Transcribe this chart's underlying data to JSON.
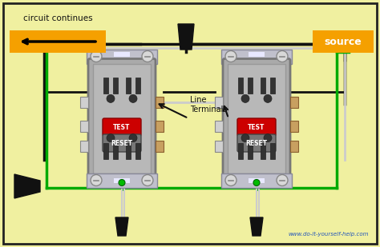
{
  "bg_color": "#f0f0a0",
  "border_color": "#222222",
  "title_text": "circuit continues",
  "source_label": "source",
  "source_color": "#f5a000",
  "url_text": "www.do-it-yourself-help.com",
  "line_terminals_text": "Line\nTerminals",
  "outlet_color": "#aaaaaa",
  "outlet_border": "#777777",
  "outlet_dark": "#888888",
  "black_wire_color": "#111111",
  "white_wire_color": "#cccccc",
  "green_wire_color": "#00aa00",
  "red_btn_color": "#cc0000",
  "gray_btn_color": "#888888",
  "screw_color": "#dddddd",
  "tan_color": "#c8a060",
  "green_dot_color": "#00bb00",
  "mounting_bracket": "#aaaacc"
}
